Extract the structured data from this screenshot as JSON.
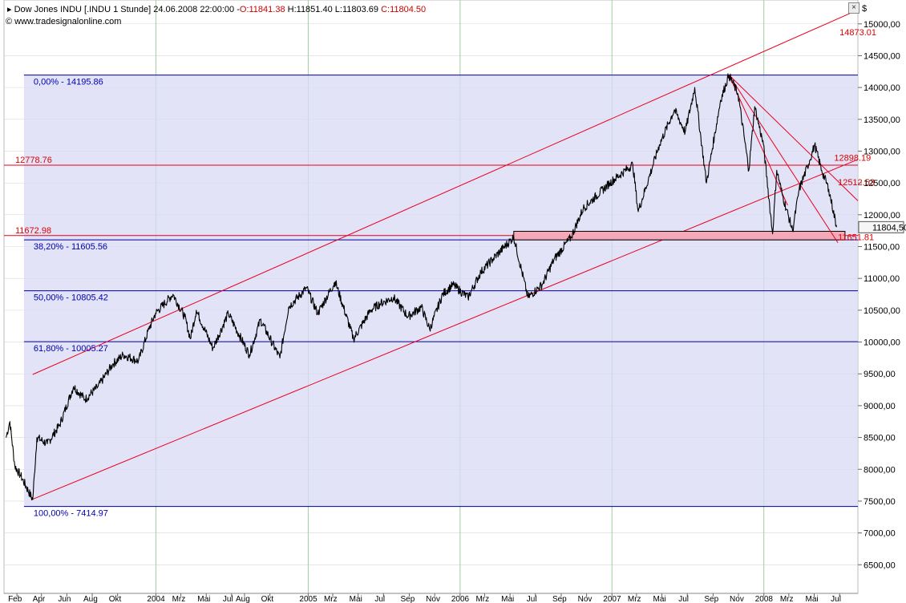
{
  "header": {
    "title": "Dow Jones INDU [.INDU  1 Stunde] 24.06.2008 22:00:00",
    "open": "O:11841.38",
    "high": "H:11851.40",
    "low": "L:11803.69",
    "close": "C:11804.50",
    "source": "© www.tradesignalonline.com",
    "currency": "$",
    "close_icon": "close-icon"
  },
  "chart_data": {
    "type": "line",
    "series": [
      {
        "values": [
          {
            "x": "2003-01-06",
            "y": 8500
          },
          {
            "x": "2003-01-15",
            "y": 8750
          },
          {
            "x": "2003-01-27",
            "y": 8050
          },
          {
            "x": "2003-02-10",
            "y": 7900
          },
          {
            "x": "2003-03-11",
            "y": 7524
          },
          {
            "x": "2003-03-21",
            "y": 8500
          },
          {
            "x": "2003-04-15",
            "y": 8400
          },
          {
            "x": "2003-05-15",
            "y": 8700
          },
          {
            "x": "2003-06-17",
            "y": 9300
          },
          {
            "x": "2003-07-15",
            "y": 9100
          },
          {
            "x": "2003-08-15",
            "y": 9300
          },
          {
            "x": "2003-09-19",
            "y": 9650
          },
          {
            "x": "2003-10-15",
            "y": 9800
          },
          {
            "x": "2003-11-20",
            "y": 9700
          },
          {
            "x": "2003-12-15",
            "y": 10200
          },
          {
            "x": "2003-12-31",
            "y": 10450
          },
          {
            "x": "2004-02-11",
            "y": 10750
          },
          {
            "x": "2004-03-10",
            "y": 10400
          },
          {
            "x": "2004-03-24",
            "y": 10050
          },
          {
            "x": "2004-04-07",
            "y": 10500
          },
          {
            "x": "2004-05-17",
            "y": 9900
          },
          {
            "x": "2004-06-23",
            "y": 10450
          },
          {
            "x": "2004-07-20",
            "y": 10100
          },
          {
            "x": "2004-08-13",
            "y": 9800
          },
          {
            "x": "2004-09-08",
            "y": 10350
          },
          {
            "x": "2004-10-25",
            "y": 9750
          },
          {
            "x": "2004-11-15",
            "y": 10550
          },
          {
            "x": "2004-12-28",
            "y": 10850
          },
          {
            "x": "2005-01-24",
            "y": 10450
          },
          {
            "x": "2005-03-07",
            "y": 10950
          },
          {
            "x": "2005-04-20",
            "y": 10050
          },
          {
            "x": "2005-05-31",
            "y": 10500
          },
          {
            "x": "2005-06-22",
            "y": 10600
          },
          {
            "x": "2005-07-25",
            "y": 10700
          },
          {
            "x": "2005-08-29",
            "y": 10400
          },
          {
            "x": "2005-09-30",
            "y": 10550
          },
          {
            "x": "2005-10-20",
            "y": 10200
          },
          {
            "x": "2005-11-20",
            "y": 10750
          },
          {
            "x": "2005-12-15",
            "y": 10900
          },
          {
            "x": "2006-01-20",
            "y": 10700
          },
          {
            "x": "2006-02-20",
            "y": 11100
          },
          {
            "x": "2006-03-20",
            "y": 11300
          },
          {
            "x": "2006-05-10",
            "y": 11650
          },
          {
            "x": "2006-06-13",
            "y": 10700
          },
          {
            "x": "2006-07-17",
            "y": 10900
          },
          {
            "x": "2006-08-15",
            "y": 11300
          },
          {
            "x": "2006-09-25",
            "y": 11650
          },
          {
            "x": "2006-10-24",
            "y": 12100
          },
          {
            "x": "2006-12-27",
            "y": 12500
          },
          {
            "x": "2007-02-20",
            "y": 12790
          },
          {
            "x": "2007-03-05",
            "y": 12050
          },
          {
            "x": "2007-04-25",
            "y": 13100
          },
          {
            "x": "2007-05-31",
            "y": 13650
          },
          {
            "x": "2007-06-26",
            "y": 13300
          },
          {
            "x": "2007-07-19",
            "y": 14000
          },
          {
            "x": "2007-08-16",
            "y": 12500
          },
          {
            "x": "2007-09-19",
            "y": 13800
          },
          {
            "x": "2007-10-09",
            "y": 14198
          },
          {
            "x": "2007-10-31",
            "y": 13900
          },
          {
            "x": "2007-11-26",
            "y": 12700
          },
          {
            "x": "2007-12-10",
            "y": 13700
          },
          {
            "x": "2007-12-31",
            "y": 13100
          },
          {
            "x": "2008-01-22",
            "y": 11700
          },
          {
            "x": "2008-02-01",
            "y": 12700
          },
          {
            "x": "2008-02-15",
            "y": 12300
          },
          {
            "x": "2008-03-10",
            "y": 11750
          },
          {
            "x": "2008-03-26",
            "y": 12400
          },
          {
            "x": "2008-04-20",
            "y": 12850
          },
          {
            "x": "2008-05-02",
            "y": 13100
          },
          {
            "x": "2008-05-19",
            "y": 12700
          },
          {
            "x": "2008-06-05",
            "y": 12400
          },
          {
            "x": "2008-06-24",
            "y": 11805
          }
        ]
      }
    ],
    "x_axis": {
      "range": [
        "2003-01-01",
        "2008-08-14"
      ],
      "ticks": [
        {
          "d": "2003-02-01",
          "label": "Feb"
        },
        {
          "d": "2003-04-01",
          "label": "Apr"
        },
        {
          "d": "2003-06-01",
          "label": "Jun"
        },
        {
          "d": "2003-08-01",
          "label": "Aug"
        },
        {
          "d": "2003-10-01",
          "label": "Okt"
        },
        {
          "d": "2004-01-01",
          "label": "2004"
        },
        {
          "d": "2004-03-01",
          "label": "Mrz"
        },
        {
          "d": "2004-05-01",
          "label": "Mai"
        },
        {
          "d": "2004-07-01",
          "label": "Jul"
        },
        {
          "d": "2004-08-01",
          "label": "Aug"
        },
        {
          "d": "2004-10-01",
          "label": "Okt"
        },
        {
          "d": "2005-01-01",
          "label": "2005"
        },
        {
          "d": "2005-03-01",
          "label": "Mrz"
        },
        {
          "d": "2005-05-01",
          "label": "Mai"
        },
        {
          "d": "2005-07-01",
          "label": "Jul"
        },
        {
          "d": "2005-09-01",
          "label": "Sep"
        },
        {
          "d": "2005-11-01",
          "label": "Nov"
        },
        {
          "d": "2006-01-01",
          "label": "2006"
        },
        {
          "d": "2006-03-01",
          "label": "Mrz"
        },
        {
          "d": "2006-05-01",
          "label": "Mai"
        },
        {
          "d": "2006-07-01",
          "label": "Jul"
        },
        {
          "d": "2006-09-01",
          "label": "Sep"
        },
        {
          "d": "2006-11-01",
          "label": "Nov"
        },
        {
          "d": "2007-01-01",
          "label": "2007"
        },
        {
          "d": "2007-03-01",
          "label": "Mrz"
        },
        {
          "d": "2007-05-01",
          "label": "Mai"
        },
        {
          "d": "2007-07-01",
          "label": "Jul"
        },
        {
          "d": "2007-09-01",
          "label": "Sep"
        },
        {
          "d": "2007-11-01",
          "label": "Nov"
        },
        {
          "d": "2008-01-01",
          "label": "2008"
        },
        {
          "d": "2008-03-01",
          "label": "Mrz"
        },
        {
          "d": "2008-05-01",
          "label": "Mai"
        },
        {
          "d": "2008-07-01",
          "label": "Jul"
        }
      ],
      "major_gridlines": [
        "2004-01-01",
        "2005-01-01",
        "2006-01-01",
        "2007-01-01",
        "2008-01-01"
      ]
    },
    "y_axis": {
      "range": [
        6050,
        15375
      ],
      "ticks": [
        {
          "v": 15000,
          "label": "15000,00"
        },
        {
          "v": 14500,
          "label": "14500,00"
        },
        {
          "v": 14000,
          "label": "14000,00"
        },
        {
          "v": 13500,
          "label": "13500,00"
        },
        {
          "v": 13000,
          "label": "13000,00"
        },
        {
          "v": 12500,
          "label": "12500,00"
        },
        {
          "v": 12000,
          "label": "12000,00"
        },
        {
          "v": 11500,
          "label": "11500,00"
        },
        {
          "v": 11000,
          "label": "11000,00"
        },
        {
          "v": 10500,
          "label": "10500,00"
        },
        {
          "v": 10000,
          "label": "10000,00"
        },
        {
          "v": 9500,
          "label": "9500,00"
        },
        {
          "v": 9000,
          "label": "9000,00"
        },
        {
          "v": 8500,
          "label": "8500,00"
        },
        {
          "v": 8000,
          "label": "8000,00"
        },
        {
          "v": 7500,
          "label": "7500,00"
        },
        {
          "v": 7000,
          "label": "7000,00"
        },
        {
          "v": 6500,
          "label": "6500,00"
        }
      ],
      "last_price_label": "11804,50",
      "last_price": 11804.5
    },
    "fib_levels": [
      {
        "value": 14195.86,
        "label": "0,00% - 14195.86"
      },
      {
        "value": 11605.56,
        "label": "38,20% - 11605.56"
      },
      {
        "value": 10805.42,
        "label": "50,00% - 10805.42"
      },
      {
        "value": 10005.27,
        "label": "61,80% - 10005.27"
      },
      {
        "value": 7414.97,
        "label": "100,00% - 7414.97"
      }
    ],
    "fib_box": {
      "x_from": "2003-02-18",
      "x_to": "2008-08-14",
      "y_from": 7414.97,
      "y_to": 14195.86
    },
    "horizontal_lines": [
      {
        "value": 12778.76,
        "label": "12778.76"
      },
      {
        "value": 11672.98,
        "label": "11672.98"
      }
    ],
    "channel": {
      "lower": [
        {
          "x": "2003-03-11",
          "y": 7530
        },
        {
          "x": "2008-08-14",
          "y": 12870
        }
      ],
      "upper": [
        {
          "x": "2003-03-11",
          "y": 9490
        },
        {
          "x": "2008-08-14",
          "y": 15220
        }
      ]
    },
    "trend_lines": [
      {
        "from": {
          "x": "2007-10-09",
          "y": 14198
        },
        "to": {
          "x": "2008-08-14",
          "y": 12220
        }
      },
      {
        "from": {
          "x": "2007-10-09",
          "y": 14198
        },
        "to": {
          "x": "2008-02-27",
          "y": 12150
        }
      },
      {
        "from": {
          "x": "2007-10-09",
          "y": 14198
        },
        "to": {
          "x": "2008-06-27",
          "y": 11560
        }
      }
    ],
    "support_zone": {
      "x_from": "2006-05-10",
      "x_to": "2008-07-14",
      "y_from": 11605.56,
      "y_to": 11740
    },
    "annotations": [
      {
        "text": "14873.01",
        "x": "2008-07-01",
        "y": 14873.01
      },
      {
        "text": "12898.19",
        "x": "2008-06-18",
        "y": 12898.19
      },
      {
        "text": "12512.53",
        "x": "2008-06-27",
        "y": 12512.53
      },
      {
        "text": "11651.81",
        "x": "2008-06-27",
        "y": 11651.81
      }
    ],
    "colors": {
      "channel": "#e8001c",
      "fib_line": "#0000a0",
      "fib_text": "#0000b0",
      "fib_fill": "#dadaf6",
      "red_text": "#dd0000",
      "price": "#000000",
      "grid": "#d8d8d8",
      "year_grid": "#9fcf9f",
      "zone_fill": "#f4a8b8"
    }
  }
}
